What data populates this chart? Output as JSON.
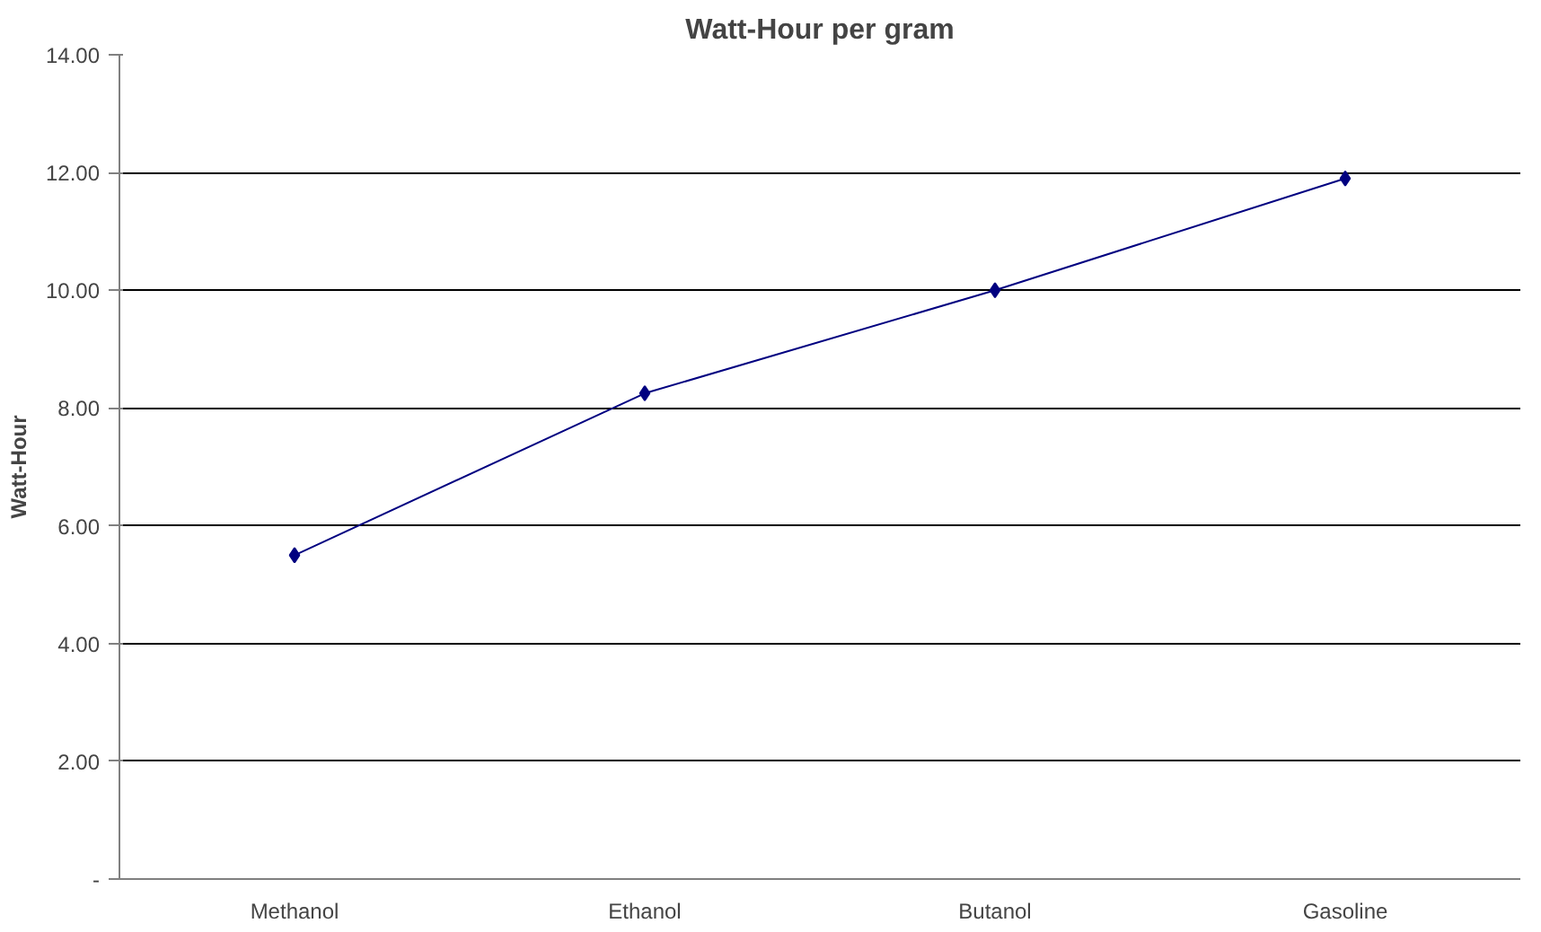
{
  "chart_data": {
    "type": "line",
    "title": "Watt-Hour per gram",
    "ylabel": "Watt-Hour",
    "categories": [
      "Methanol",
      "Ethanol",
      "Butanol",
      "Gasoline"
    ],
    "series": [
      {
        "color": "#000080",
        "values": [
          5.5,
          8.25,
          10.0,
          11.9
        ]
      }
    ],
    "ylim": [
      0,
      14
    ],
    "yticks": [
      {
        "value": 0,
        "label": "-"
      },
      {
        "value": 2,
        "label": "2.00"
      },
      {
        "value": 4,
        "label": "4.00"
      },
      {
        "value": 6,
        "label": "6.00"
      },
      {
        "value": 8,
        "label": "8.00"
      },
      {
        "value": 10,
        "label": "10.00"
      },
      {
        "value": 12,
        "label": "12.00"
      },
      {
        "value": 14,
        "label": "14.00"
      }
    ],
    "grid": "y",
    "marker": "diamond",
    "line_style": "solid"
  }
}
